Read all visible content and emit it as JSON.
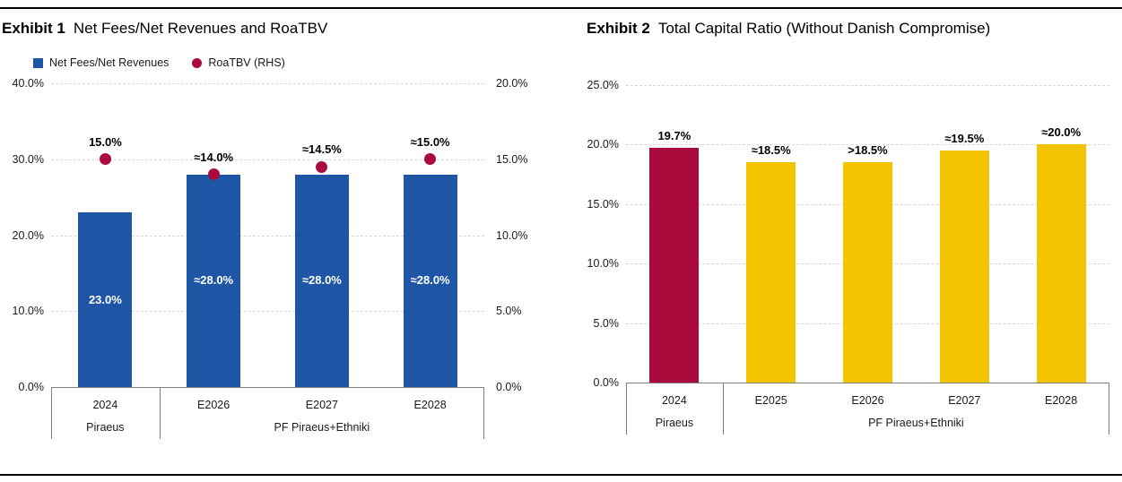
{
  "colors": {
    "blue": "#1F55A5",
    "red": "#AB0A3C",
    "yellow": "#F4C400",
    "grid": "#D9D9D9",
    "box_border": "#7F7F7F"
  },
  "chart_data": [
    {
      "type": "bar",
      "exhibit": "Exhibit 1",
      "title": "Net Fees/Net Revenues and RoaTBV",
      "legend": [
        {
          "label": "Net Fees/Net Revenues",
          "marker": "square",
          "color": "blue"
        },
        {
          "label": "RoaTBV (RHS)",
          "marker": "circle",
          "color": "red"
        }
      ],
      "categories": [
        "2024",
        "E2026",
        "E2027",
        "E2028"
      ],
      "groups": [
        {
          "label": "Piraeus",
          "span": 1
        },
        {
          "label": "PF Piraeus+Ethniki",
          "span": 3
        }
      ],
      "series": [
        {
          "name": "Net Fees/Net Revenues",
          "type": "bar",
          "axis": "left",
          "color": "blue",
          "values": [
            23.0,
            28.0,
            28.0,
            28.0
          ],
          "labels": [
            "23.0%",
            "≈28.0%",
            "≈28.0%",
            "≈28.0%"
          ],
          "label_position": "inside"
        },
        {
          "name": "RoaTBV (RHS)",
          "type": "point",
          "axis": "right",
          "color": "red",
          "values": [
            15.0,
            14.0,
            14.5,
            15.0
          ],
          "labels": [
            "15.0%",
            "≈14.0%",
            "≈14.5%",
            "≈15.0%"
          ]
        }
      ],
      "left_axis": {
        "ticks": [
          "40.0%",
          "30.0%",
          "20.0%",
          "10.0%",
          "0.0%"
        ],
        "max": 40,
        "min": 0
      },
      "right_axis": {
        "ticks": [
          "20.0%",
          "15.0%",
          "10.0%",
          "5.0%",
          "0.0%"
        ],
        "max": 20,
        "min": 0
      },
      "grid": "dashed",
      "legend_position": "top-left"
    },
    {
      "type": "bar",
      "exhibit": "Exhibit 2",
      "title": "Total Capital Ratio (Without Danish Compromise)",
      "categories": [
        "2024",
        "E2025",
        "E2026",
        "E2027",
        "E2028"
      ],
      "groups": [
        {
          "label": "Piraeus",
          "span": 1
        },
        {
          "label": "PF Piraeus+Ethniki",
          "span": 4
        }
      ],
      "series": [
        {
          "name": "Total Capital Ratio",
          "type": "bar",
          "axis": "left",
          "color": "yellow",
          "bar_colors": [
            "red",
            "yellow",
            "yellow",
            "yellow",
            "yellow"
          ],
          "values": [
            19.7,
            18.5,
            18.5,
            19.5,
            20.0
          ],
          "labels": [
            "19.7%",
            "≈18.5%",
            ">18.5%",
            "≈19.5%",
            "≈20.0%"
          ],
          "label_position": "above"
        }
      ],
      "left_axis": {
        "ticks": [
          "25.0%",
          "20.0%",
          "15.0%",
          "10.0%",
          "5.0%",
          "0.0%"
        ],
        "max": 25,
        "min": 0
      },
      "grid": "dashed"
    }
  ]
}
